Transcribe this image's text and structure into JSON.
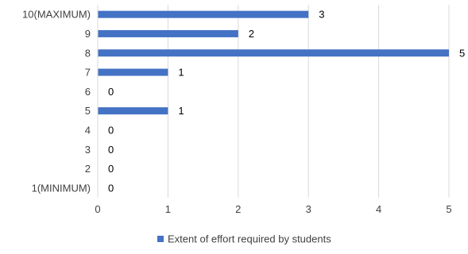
{
  "chart_data": {
    "type": "bar",
    "orientation": "horizontal",
    "categories": [
      "10(MAXIMUM)",
      "9",
      "8",
      "7",
      "6",
      "5",
      "4",
      "3",
      "2",
      "1(MINIMUM)"
    ],
    "series": [
      {
        "name": "Extent of effort required by students",
        "values": [
          3,
          2,
          5,
          1,
          0,
          1,
          0,
          0,
          0,
          0
        ],
        "color": "#4472C4"
      }
    ],
    "data_labels": [
      "3",
      "2",
      "5",
      "1",
      "0",
      "1",
      "0",
      "0",
      "0",
      "0"
    ],
    "x_ticks": [
      "0",
      "1",
      "2",
      "3",
      "4",
      "5"
    ],
    "xlim": [
      0,
      5
    ],
    "grid": "vertical",
    "legend": "bottom",
    "colors": {
      "bar": "#4472C4",
      "grid": "#D9D9D9",
      "text": "#404040"
    }
  }
}
